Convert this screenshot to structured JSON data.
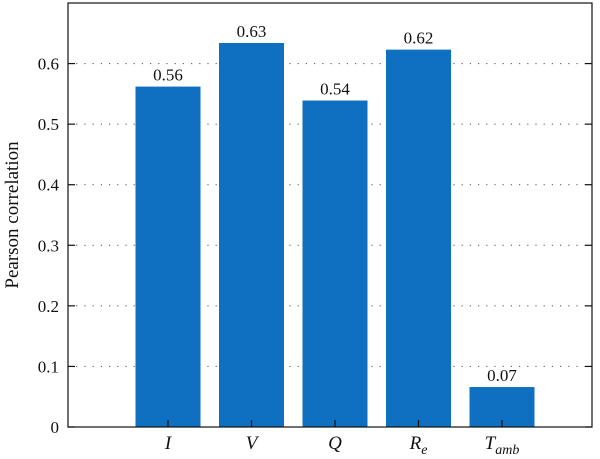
{
  "chart_data": {
    "type": "bar",
    "categories": [
      {
        "base": "I",
        "sub": ""
      },
      {
        "base": "V",
        "sub": ""
      },
      {
        "base": "Q",
        "sub": ""
      },
      {
        "base": "R",
        "sub": "e"
      },
      {
        "base": "T",
        "sub": "amb"
      }
    ],
    "values": [
      0.562,
      0.634,
      0.539,
      0.623,
      0.066
    ],
    "data_labels": [
      "0.56",
      "0.63",
      "0.54",
      "0.62",
      "0.07"
    ],
    "title": "",
    "xlabel": "",
    "ylabel": "Pearson correlation",
    "ylim": [
      0,
      0.7
    ],
    "yticks": [
      0,
      0.1,
      0.2,
      0.3,
      0.4,
      0.5,
      0.6
    ],
    "ytick_labels": [
      "0",
      "0.1",
      "0.2",
      "0.3",
      "0.4",
      "0.5",
      "0.6"
    ],
    "grid": "horizontal-dotted",
    "bar_color": "#0f6fc0"
  }
}
